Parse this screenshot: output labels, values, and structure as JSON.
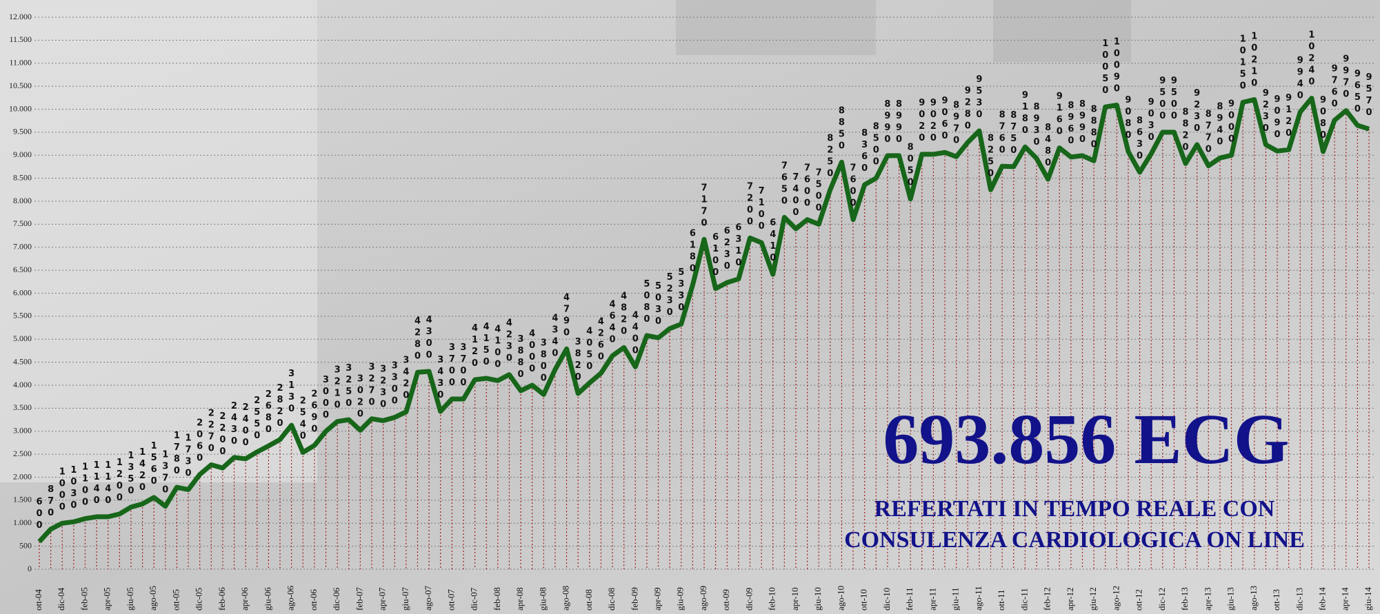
{
  "chart_data": {
    "type": "line",
    "title": "693.856 ECG",
    "subtitle": [
      "REFERTATI IN TEMPO REALE CON",
      "CONSULENZA CARDIOLOGICA ON LINE"
    ],
    "categories": [
      "ott-04",
      null,
      "dic-04",
      null,
      "feb-05",
      null,
      "apr-05",
      null,
      "giu-05",
      null,
      "ago-05",
      null,
      "ott-05",
      null,
      "dic-05",
      null,
      "feb-06",
      null,
      "apr-06",
      null,
      "giu-06",
      null,
      "ago-06",
      null,
      "ott-06",
      null,
      "dic-06",
      null,
      "feb-07",
      null,
      "apr-07",
      null,
      "giu-07",
      null,
      "ago-07",
      null,
      "ott-07",
      null,
      "dic-07",
      null,
      "feb-08",
      null,
      "apr-08",
      null,
      "giu-08",
      null,
      "ago-08",
      null,
      "ott-08",
      null,
      "dic-08",
      null,
      "feb-09",
      null,
      "apr-09",
      null,
      "giu-09",
      null,
      "ago-09",
      null,
      "ott-09",
      null,
      "dic-09",
      null,
      "feb-10",
      null,
      "apr-10",
      null,
      "giu-10",
      null,
      "ago-10",
      null,
      "ott-10",
      null,
      "dic-10",
      null,
      "feb-11",
      null,
      "apr-11",
      null,
      "giu-11",
      null,
      "ago-11",
      null,
      "ott-11",
      null,
      "dic-11",
      null,
      "feb-12",
      null,
      "apr-12",
      null,
      "giu-12",
      null,
      "ago-12",
      null,
      "ott-12",
      null,
      "dic-12",
      null,
      "feb-13",
      null,
      "apr-13",
      null,
      "giu-13",
      null,
      "ago-13",
      null,
      "ott-13",
      null,
      "dic-13",
      null,
      "feb-14",
      null,
      "apr-14",
      null,
      "giu-14"
    ],
    "values": [
      600,
      870,
      1000,
      1030,
      1100,
      1140,
      1140,
      1200,
      1350,
      1420,
      1560,
      1370,
      1780,
      1730,
      2060,
      2270,
      2200,
      2430,
      2400,
      2550,
      2680,
      2820,
      3130,
      2540,
      2690,
      3000,
      3210,
      3250,
      3020,
      3270,
      3230,
      3300,
      3420,
      4280,
      4300,
      3430,
      3700,
      3700,
      4120,
      4150,
      4100,
      4230,
      3880,
      4000,
      3800,
      4340,
      4790,
      3820,
      4050,
      4260,
      4640,
      4820,
      4400,
      5080,
      5030,
      5230,
      5330,
      6180,
      7170,
      6100,
      6230,
      6310,
      7200,
      7100,
      6410,
      7650,
      7400,
      7600,
      7500,
      8250,
      8850,
      7600,
      8360,
      8500,
      8990,
      8990,
      8050,
      9020,
      9020,
      9060,
      8970,
      9280,
      9530,
      8250,
      8760,
      8750,
      9180,
      8930,
      8480,
      9160,
      8960,
      8990,
      8880,
      10050,
      10090,
      9080,
      8630,
      9030,
      9500,
      9500,
      8820,
      9230,
      8770,
      8940,
      9000,
      10150,
      10210,
      9230,
      9090,
      9120,
      9940,
      10240,
      9080,
      9760,
      9970,
      9650,
      9570
    ],
    "color": "#17661a",
    "ylim": [
      0,
      12000
    ],
    "yticks": [
      0,
      500,
      {
        "value": 1000,
        "label": "1.000"
      },
      {
        "value": 1500,
        "label": "1.500"
      },
      {
        "value": 2000,
        "label": "2.000"
      },
      {
        "value": 2500,
        "label": "2.500"
      },
      {
        "value": 3000,
        "label": "3.000"
      },
      {
        "value": 3500,
        "label": "3.500"
      },
      {
        "value": 4000,
        "label": "4.000"
      },
      {
        "value": 4500,
        "label": "4.500"
      },
      {
        "value": 5000,
        "label": "5.000"
      },
      {
        "value": 5500,
        "label": "5.500"
      },
      {
        "value": 6000,
        "label": "6.000"
      },
      {
        "value": 6500,
        "label": "6.500"
      },
      {
        "value": 7000,
        "label": "7.000"
      },
      {
        "value": 7500,
        "label": "7.500"
      },
      {
        "value": 8000,
        "label": "8.000"
      },
      {
        "value": 8500,
        "label": "8.500"
      },
      {
        "value": 9000,
        "label": "9.000"
      },
      {
        "value": 9500,
        "label": "9.500"
      },
      {
        "value": 10000,
        "label": "10.000"
      },
      {
        "value": 10500,
        "label": "10.500"
      },
      {
        "value": 11000,
        "label": "11.000"
      },
      {
        "value": 11500,
        "label": "11.500"
      },
      {
        "value": 12000,
        "label": "12.000"
      }
    ],
    "grid": true
  }
}
